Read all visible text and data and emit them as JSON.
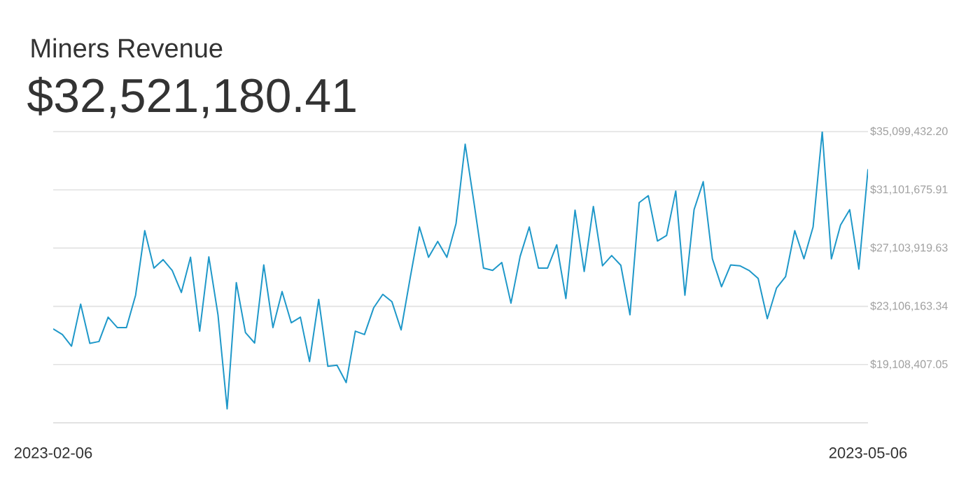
{
  "chart_data": {
    "type": "line",
    "title": "Miners Revenue",
    "subtitle": "$32,521,180.41",
    "x": [
      "2023-02-06",
      "2023-02-07",
      "2023-02-08",
      "2023-02-09",
      "2023-02-10",
      "2023-02-11",
      "2023-02-12",
      "2023-02-13",
      "2023-02-14",
      "2023-02-15",
      "2023-02-16",
      "2023-02-17",
      "2023-02-18",
      "2023-02-19",
      "2023-02-20",
      "2023-02-21",
      "2023-02-22",
      "2023-02-23",
      "2023-02-24",
      "2023-02-25",
      "2023-02-26",
      "2023-02-27",
      "2023-02-28",
      "2023-03-01",
      "2023-03-02",
      "2023-03-03",
      "2023-03-04",
      "2023-03-05",
      "2023-03-06",
      "2023-03-07",
      "2023-03-08",
      "2023-03-09",
      "2023-03-10",
      "2023-03-11",
      "2023-03-12",
      "2023-03-13",
      "2023-03-14",
      "2023-03-15",
      "2023-03-16",
      "2023-03-17",
      "2023-03-18",
      "2023-03-19",
      "2023-03-20",
      "2023-03-21",
      "2023-03-22",
      "2023-03-23",
      "2023-03-24",
      "2023-03-25",
      "2023-03-26",
      "2023-03-27",
      "2023-03-28",
      "2023-03-29",
      "2023-03-30",
      "2023-03-31",
      "2023-04-01",
      "2023-04-02",
      "2023-04-03",
      "2023-04-04",
      "2023-04-05",
      "2023-04-06",
      "2023-04-07",
      "2023-04-08",
      "2023-04-09",
      "2023-04-10",
      "2023-04-11",
      "2023-04-12",
      "2023-04-13",
      "2023-04-14",
      "2023-04-15",
      "2023-04-16",
      "2023-04-17",
      "2023-04-18",
      "2023-04-19",
      "2023-04-20",
      "2023-04-21",
      "2023-04-22",
      "2023-04-23",
      "2023-04-24",
      "2023-04-25",
      "2023-04-26",
      "2023-04-27",
      "2023-04-28",
      "2023-04-29",
      "2023-04-30",
      "2023-05-01",
      "2023-05-02",
      "2023-05-03",
      "2023-05-04",
      "2023-05-05",
      "2023-05-06"
    ],
    "series": [
      {
        "color": "#1f98c9",
        "values": [
          21560000,
          21170000,
          20370000,
          23260000,
          20560000,
          20690000,
          22360000,
          21650000,
          21650000,
          23870000,
          28300000,
          25730000,
          26310000,
          25570000,
          24060000,
          26470000,
          21400000,
          26500000,
          22520000,
          16070000,
          24730000,
          21300000,
          20590000,
          25950000,
          21650000,
          24120000,
          21980000,
          22360000,
          19310000,
          23580000,
          18990000,
          19060000,
          17870000,
          21400000,
          21170000,
          23000000,
          23930000,
          23420000,
          21490000,
          25090000,
          28550000,
          26470000,
          27560000,
          26470000,
          28780000,
          34230000,
          30060000,
          25730000,
          25570000,
          26110000,
          23320000,
          26530000,
          28550000,
          25730000,
          25730000,
          27330000,
          23640000,
          29710000,
          25500000,
          29960000,
          25890000,
          26590000,
          25920000,
          22520000,
          30220000,
          30700000,
          27590000,
          27970000,
          31020000,
          23870000,
          29740000,
          31660000,
          26370000,
          24450000,
          25950000,
          25890000,
          25570000,
          25020000,
          22260000,
          24350000,
          25150000,
          28300000,
          26370000,
          28550000,
          35090000,
          26370000,
          28680000,
          29740000,
          25660000,
          32520000
        ]
      }
    ],
    "xlim": [
      "2023-02-06",
      "2023-05-06"
    ],
    "xticks": [
      "2023-02-06",
      "2023-05-06"
    ],
    "ylim": [
      15110650.76,
      35099432.2
    ],
    "yticks": [
      {
        "value": 15110650.76,
        "label": null
      },
      {
        "value": 19108407.05,
        "label": "$19,108,407.05"
      },
      {
        "value": 23106163.34,
        "label": "$23,106,163.34"
      },
      {
        "value": 27103919.63,
        "label": "$27,103,919.63"
      },
      {
        "value": 31101675.91,
        "label": "$31,101,675.91"
      },
      {
        "value": 35099432.2,
        "label": "$35,099,432.20"
      }
    ],
    "grid": "y"
  }
}
